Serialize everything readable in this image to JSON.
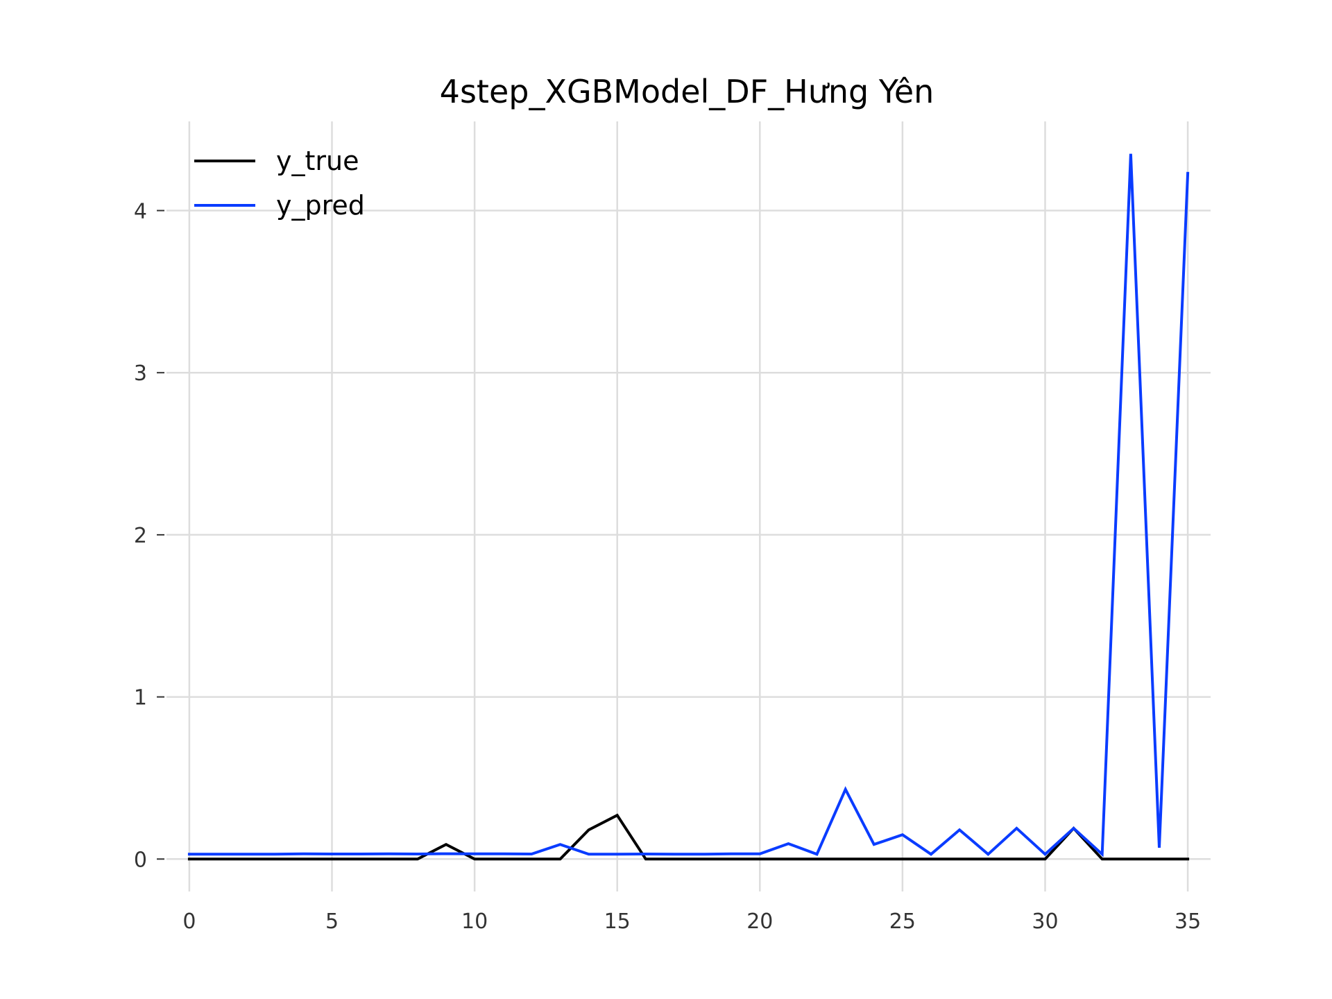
{
  "chart_data": {
    "type": "line",
    "title": "4step_XGBModel_DF_Hưng Yên",
    "xlabel": "",
    "ylabel": "",
    "xlim": [
      -0.8,
      35.8
    ],
    "ylim": [
      -0.2,
      4.55
    ],
    "grid": true,
    "legend": "top-left",
    "xticks": [
      0,
      5,
      10,
      15,
      20,
      25,
      30,
      35
    ],
    "yticks": [
      0,
      1,
      2,
      3,
      4
    ],
    "xtick_labels": [
      "0",
      "5",
      "10",
      "15",
      "20",
      "25",
      "30",
      "35"
    ],
    "ytick_labels": [
      "0",
      "1",
      "2",
      "3",
      "4"
    ],
    "x": [
      0,
      1,
      2,
      3,
      4,
      5,
      6,
      7,
      8,
      9,
      10,
      11,
      12,
      13,
      14,
      15,
      16,
      17,
      18,
      19,
      20,
      21,
      22,
      23,
      24,
      25,
      26,
      27,
      28,
      29,
      30,
      31,
      32,
      33,
      34,
      35
    ],
    "series": [
      {
        "name": "y_true",
        "color": "#000000",
        "values": [
          0,
          0,
          0,
          0,
          0,
          0,
          0,
          0,
          0,
          0.09,
          0,
          0,
          0,
          0,
          0.18,
          0.27,
          0,
          0,
          0,
          0,
          0,
          0,
          0,
          0,
          0,
          0,
          0,
          0,
          0,
          0,
          0,
          0.19,
          0,
          0,
          0,
          0
        ]
      },
      {
        "name": "y_pred",
        "color": "#0a3cff",
        "values": [
          0.03,
          0.03,
          0.03,
          0.03,
          0.032,
          0.031,
          0.031,
          0.032,
          0.031,
          0.033,
          0.032,
          0.032,
          0.031,
          0.09,
          0.03,
          0.03,
          0.031,
          0.03,
          0.03,
          0.032,
          0.032,
          0.095,
          0.03,
          0.43,
          0.09,
          0.15,
          0.03,
          0.18,
          0.03,
          0.19,
          0.03,
          0.19,
          0.03,
          4.35,
          0.07,
          4.23
        ]
      }
    ]
  }
}
